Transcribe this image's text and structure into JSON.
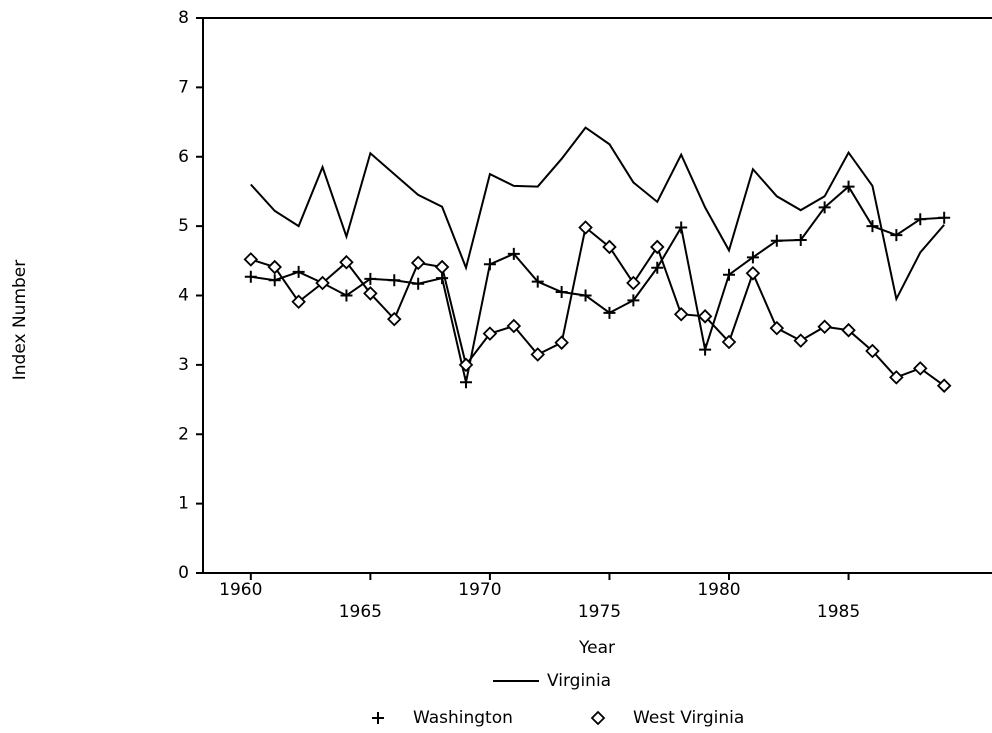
{
  "chart_data": {
    "type": "line",
    "x_label": "Year",
    "y_label": "Index Number",
    "x": [
      1960,
      1961,
      1962,
      1963,
      1964,
      1965,
      1966,
      1967,
      1968,
      1969,
      1970,
      1971,
      1972,
      1973,
      1974,
      1975,
      1976,
      1977,
      1978,
      1979,
      1980,
      1981,
      1982,
      1983,
      1984,
      1985,
      1986,
      1987,
      1988,
      1989
    ],
    "series": [
      {
        "name": "Virginia",
        "color": "#000000",
        "marker": "none",
        "values": [
          5.6,
          5.22,
          5.0,
          5.85,
          4.85,
          6.05,
          5.75,
          5.45,
          5.28,
          4.4,
          5.75,
          5.58,
          5.57,
          5.97,
          6.42,
          6.18,
          5.63,
          5.35,
          6.03,
          5.27,
          4.65,
          5.82,
          5.43,
          5.23,
          5.43,
          6.06,
          5.58,
          3.95,
          4.62,
          5.02
        ]
      },
      {
        "name": "Washington",
        "color": "#000000",
        "marker": "plus",
        "values": [
          4.27,
          4.22,
          4.34,
          4.18,
          4.0,
          4.24,
          4.22,
          4.17,
          4.25,
          2.75,
          4.45,
          4.6,
          4.2,
          4.05,
          4.0,
          3.75,
          3.93,
          4.4,
          4.98,
          3.22,
          4.3,
          4.55,
          4.79,
          4.8,
          5.27,
          5.57,
          5.0,
          4.87,
          5.1,
          5.12
        ]
      },
      {
        "name": "West Virginia",
        "color": "#000000",
        "marker": "diamond",
        "values": [
          4.52,
          4.41,
          3.91,
          4.18,
          4.48,
          4.03,
          3.66,
          4.47,
          4.41,
          3.0,
          3.45,
          3.56,
          3.15,
          3.32,
          4.98,
          4.7,
          4.18,
          4.7,
          3.73,
          3.7,
          3.33,
          4.32,
          3.53,
          3.35,
          3.55,
          3.5,
          3.2,
          2.82,
          2.95,
          2.7
        ]
      }
    ],
    "xlim": [
      1958,
      1991
    ],
    "xticks": [
      1960,
      1965,
      1970,
      1975,
      1980,
      1985
    ],
    "ylim": [
      0,
      8
    ],
    "yticks": [
      0,
      1,
      2,
      3,
      4,
      5,
      6,
      7,
      8
    ],
    "grid": false
  }
}
